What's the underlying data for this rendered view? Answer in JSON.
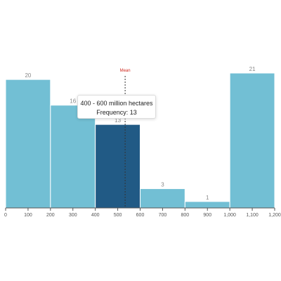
{
  "chart_data": {
    "type": "bar",
    "histogram": true,
    "bins": [
      {
        "x0": 0,
        "x1": 200,
        "value": 20
      },
      {
        "x0": 200,
        "x1": 400,
        "value": 16
      },
      {
        "x0": 400,
        "x1": 600,
        "value": 13,
        "highlighted": true
      },
      {
        "x0": 600,
        "x1": 800,
        "value": 3
      },
      {
        "x0": 800,
        "x1": 1000,
        "value": 1
      },
      {
        "x0": 1000,
        "x1": 1200,
        "value": 21
      }
    ],
    "x_ticks": [
      0,
      100,
      200,
      300,
      400,
      500,
      600,
      700,
      800,
      900,
      1000,
      1100,
      1200
    ],
    "x_tick_labels": [
      "0",
      "100",
      "200",
      "300",
      "400",
      "500",
      "600",
      "700",
      "800",
      "900",
      "1,000",
      "1,100",
      "1,200"
    ],
    "xlim": [
      0,
      1200
    ],
    "ylim": [
      0,
      21
    ],
    "grid": false,
    "mean": {
      "label": "Mean",
      "value": 533
    },
    "colors": {
      "bar": "#72bfd4",
      "highlight": "#215a85",
      "mean": "#d0281e",
      "axis": "#555555"
    }
  },
  "tooltip": {
    "title": "400 - 600 million hectares",
    "body": "Frequency: 13"
  }
}
